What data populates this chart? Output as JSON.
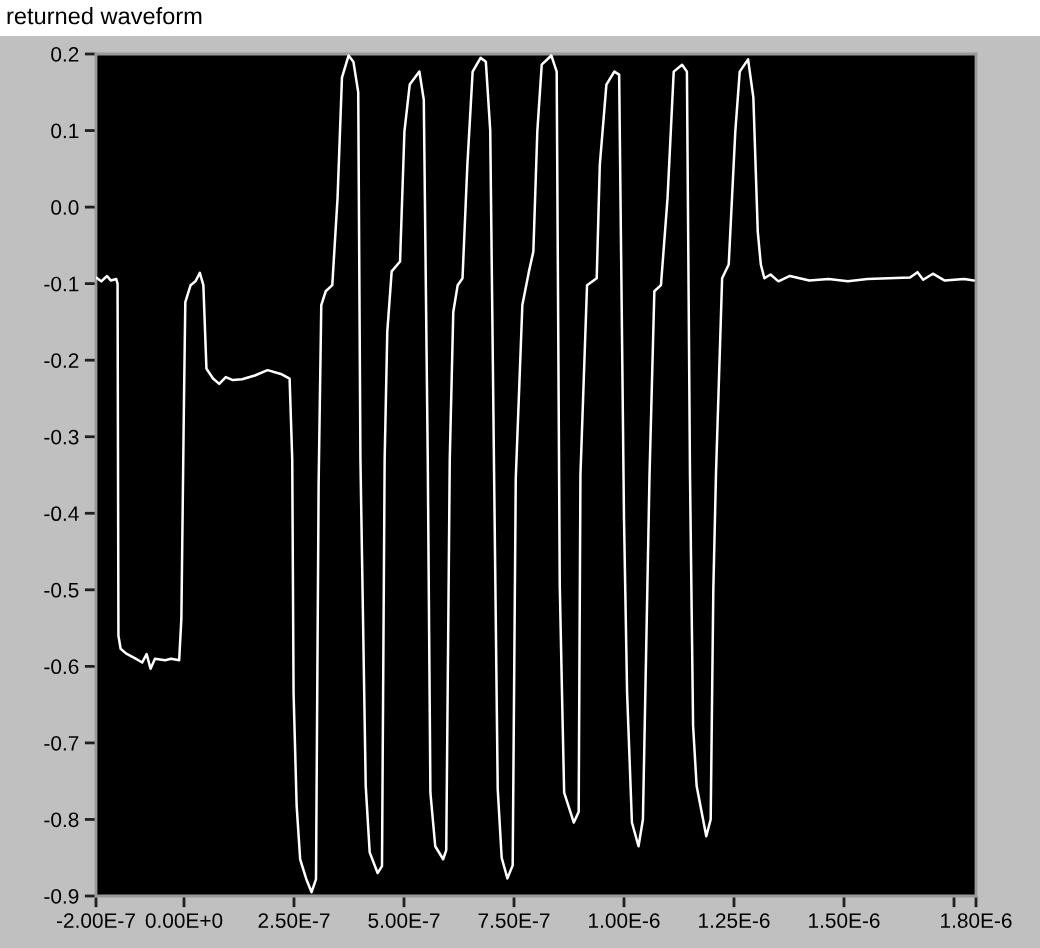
{
  "chart_data": {
    "type": "line",
    "title": "returned waveform",
    "x": [
      -2e-07,
      -1.88e-07,
      -1.75e-07,
      -1.66e-07,
      -1.54e-07,
      -1.51e-07,
      -1.49e-07,
      -1.44e-07,
      -1.32e-07,
      -1.1e-07,
      -9.5e-08,
      -8.5e-08,
      -7.6e-08,
      -6.6e-08,
      -4.3e-08,
      -2.9e-08,
      -1.1e-08,
      -6e-09,
      0,
      3e-09,
      1.5e-08,
      2.6e-08,
      3.6e-08,
      4.4e-08,
      5.1e-08,
      6.6e-08,
      8e-08,
      9.5e-08,
      1.11e-07,
      1.32e-07,
      1.61e-07,
      1.9e-07,
      2.2e-07,
      2.4e-07,
      2.46e-07,
      2.49e-07,
      2.56e-07,
      2.64e-07,
      2.78e-07,
      2.9e-07,
      3e-07,
      3.06e-07,
      3.12e-07,
      3.22e-07,
      3.37e-07,
      3.49e-07,
      3.59e-07,
      3.74e-07,
      3.85e-07,
      3.96e-07,
      4.01e-07,
      4.13e-07,
      4.22e-07,
      4.4e-07,
      4.5e-07,
      4.56e-07,
      4.62e-07,
      4.72e-07,
      4.91e-07,
      5.01e-07,
      5.13e-07,
      5.35e-07,
      5.45e-07,
      5.54e-07,
      5.6e-07,
      5.71e-07,
      5.89e-07,
      5.96e-07,
      6.04e-07,
      6.12e-07,
      6.22e-07,
      6.33e-07,
      6.44e-07,
      6.56e-07,
      6.74e-07,
      6.86e-07,
      6.96e-07,
      7.05e-07,
      7.13e-07,
      7.22e-07,
      7.35e-07,
      7.47e-07,
      7.54e-07,
      7.69e-07,
      7.84e-07,
      7.94e-07,
      8.03e-07,
      8.13e-07,
      8.35e-07,
      8.47e-07,
      8.54e-07,
      8.6e-07,
      8.64e-07,
      8.86e-07,
      8.97e-07,
      9.01e-07,
      9.16e-07,
      9.38e-07,
      9.45e-07,
      9.6e-07,
      9.78e-07,
      9.89e-07,
      1e-06,
      1.007e-06,
      1.018e-06,
      1.033e-06,
      1.043e-06,
      1.058e-06,
      1.069e-06,
      1.084e-06,
      1.099e-06,
      1.113e-06,
      1.132e-06,
      1.143e-06,
      1.15e-06,
      1.157e-06,
      1.165e-06,
      1.187e-06,
      1.197e-06,
      1.203e-06,
      1.209e-06,
      1.223e-06,
      1.238e-06,
      1.253e-06,
      1.263e-06,
      1.282e-06,
      1.294e-06,
      1.304e-06,
      1.311e-06,
      1.319e-06,
      1.333e-06,
      1.351e-06,
      1.377e-06,
      1.421e-06,
      1.465e-06,
      1.509e-06,
      1.553e-06,
      1.65e-06,
      1.667e-06,
      1.68e-06,
      1.702e-06,
      1.729e-06,
      1.773e-06,
      1.795e-06
    ],
    "series": [
      {
        "color": "#ffffff",
        "values": [
          -0.092,
          -0.097,
          -0.09,
          -0.096,
          -0.094,
          -0.1,
          -0.56,
          -0.577,
          -0.583,
          -0.59,
          -0.595,
          -0.584,
          -0.603,
          -0.59,
          -0.592,
          -0.59,
          -0.592,
          -0.538,
          -0.25,
          -0.124,
          -0.102,
          -0.097,
          -0.086,
          -0.102,
          -0.211,
          -0.224,
          -0.231,
          -0.222,
          -0.226,
          -0.225,
          -0.22,
          -0.213,
          -0.218,
          -0.224,
          -0.33,
          -0.634,
          -0.782,
          -0.852,
          -0.878,
          -0.895,
          -0.878,
          -0.36,
          -0.128,
          -0.11,
          -0.102,
          0.012,
          0.169,
          0.198,
          0.19,
          0.15,
          -0.33,
          -0.756,
          -0.843,
          -0.87,
          -0.861,
          -0.33,
          -0.163,
          -0.084,
          -0.071,
          0.099,
          0.16,
          0.177,
          0.14,
          -0.33,
          -0.765,
          -0.835,
          -0.852,
          -0.84,
          -0.33,
          -0.137,
          -0.102,
          -0.093,
          0.055,
          0.177,
          0.195,
          0.19,
          0.1,
          -0.36,
          -0.76,
          -0.85,
          -0.877,
          -0.86,
          -0.355,
          -0.128,
          -0.084,
          -0.058,
          0.099,
          0.186,
          0.198,
          0.177,
          -0.494,
          -0.66,
          -0.765,
          -0.804,
          -0.79,
          -0.35,
          -0.102,
          -0.093,
          0.055,
          0.16,
          0.177,
          0.173,
          -0.407,
          -0.634,
          -0.804,
          -0.835,
          -0.8,
          -0.35,
          -0.11,
          -0.102,
          0.012,
          0.177,
          0.186,
          0.177,
          -0.35,
          -0.677,
          -0.756,
          -0.822,
          -0.8,
          -0.5,
          -0.35,
          -0.093,
          -0.075,
          0.099,
          0.177,
          0.193,
          0.143,
          -0.032,
          -0.075,
          -0.093,
          -0.088,
          -0.097,
          -0.09,
          -0.096,
          -0.094,
          -0.097,
          -0.094,
          -0.092,
          -0.085,
          -0.095,
          -0.087,
          -0.096,
          -0.094,
          -0.096
        ]
      }
    ],
    "xlim": [
      -2e-07,
      1.8e-06
    ],
    "ylim": [
      -0.9,
      0.2
    ],
    "xticks": [
      {
        "value": -2e-07,
        "label": "-2.00E-7"
      },
      {
        "value": 0,
        "label": "0.00E+0"
      },
      {
        "value": 2.5e-07,
        "label": "2.50E-7"
      },
      {
        "value": 5e-07,
        "label": "5.00E-7"
      },
      {
        "value": 7.5e-07,
        "label": "7.50E-7"
      },
      {
        "value": 1e-06,
        "label": "1.00E-6"
      },
      {
        "value": 1.25e-06,
        "label": "1.25E-6"
      },
      {
        "value": 1.5e-06,
        "label": "1.50E-6"
      },
      {
        "value": 1.75e-06,
        "label": null
      },
      {
        "value": 1.8e-06,
        "label": "1.80E-6"
      }
    ],
    "yticks": [
      -0.9,
      -0.8,
      -0.7,
      -0.6,
      -0.5,
      -0.4,
      -0.3,
      -0.2,
      -0.1,
      {
        "value": 0,
        "label": "0.0"
      },
      0.1,
      0.2
    ],
    "line_style": "solid"
  }
}
